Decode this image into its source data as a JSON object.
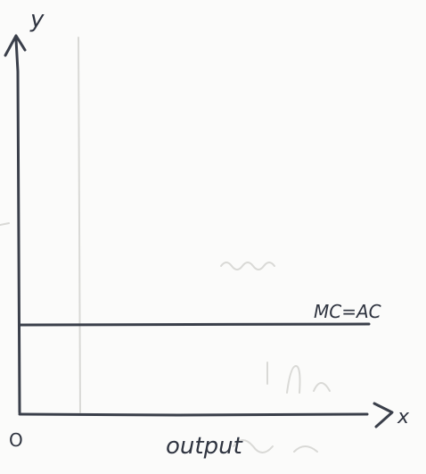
{
  "diagram": {
    "axes": {
      "y_label": "y",
      "x_label": "x",
      "origin_label": "O",
      "x_axis_title": "output"
    },
    "curve_label": "MC=AC",
    "colors": {
      "ink": "#3a3f4a",
      "paper": "#fbfbfa",
      "bleed_through": "#d9d9d6"
    }
  }
}
